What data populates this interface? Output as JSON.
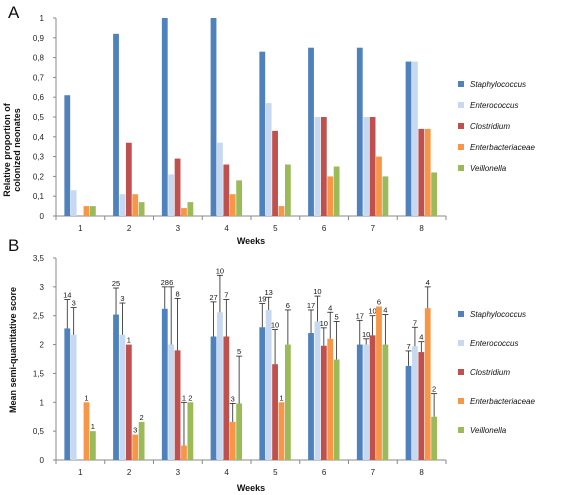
{
  "colors": [
    "#4f81bd",
    "#c6d9f1",
    "#c0504d",
    "#f79646",
    "#9bbb59"
  ],
  "chart_data": [
    {
      "type": "bar",
      "panel_label": "A",
      "title": "",
      "xlabel": "Weeks",
      "ylabel_lines": [
        "Relative proportion of",
        "colonized neonates"
      ],
      "categories": [
        "1",
        "2",
        "3",
        "4",
        "5",
        "6",
        "7",
        "8"
      ],
      "ylim": [
        0,
        1
      ],
      "yticks": [
        "0",
        "0,1",
        "0,2",
        "0,3",
        "0,4",
        "0,5",
        "0,6",
        "0,7",
        "0,8",
        "0,9",
        "1"
      ],
      "grid": false,
      "legend_position": "right",
      "series": [
        {
          "name": "Staphylococcus",
          "values": [
            0.61,
            0.92,
            1.0,
            1.0,
            0.83,
            0.85,
            0.85,
            0.78
          ]
        },
        {
          "name": "Enterococcus",
          "values": [
            0.13,
            0.11,
            0.21,
            0.37,
            0.57,
            0.5,
            0.5,
            0.78
          ]
        },
        {
          "name": "Clostridium",
          "values": [
            0.0,
            0.37,
            0.29,
            0.26,
            0.43,
            0.5,
            0.5,
            0.44
          ]
        },
        {
          "name": "Enterbacteriaceae",
          "values": [
            0.05,
            0.11,
            0.04,
            0.11,
            0.05,
            0.2,
            0.3,
            0.44
          ]
        },
        {
          "name": "Veillonella",
          "values": [
            0.05,
            0.07,
            0.07,
            0.18,
            0.26,
            0.25,
            0.2,
            0.22
          ]
        }
      ]
    },
    {
      "type": "bar",
      "panel_label": "B",
      "title": "",
      "xlabel": "Weeks",
      "ylabel": "Mean semi-quantitative score",
      "categories": [
        "1",
        "2",
        "3",
        "4",
        "5",
        "6",
        "7",
        "8"
      ],
      "ylim": [
        0,
        3.5
      ],
      "yticks": [
        "0",
        "0,5",
        "1",
        "1,5",
        "2",
        "2,5",
        "3",
        "3,5"
      ],
      "grid": false,
      "legend_position": "right",
      "error_bars": "upper",
      "series": [
        {
          "name": "Staphylococcus",
          "values": [
            2.28,
            2.52,
            2.62,
            2.14,
            2.3,
            2.2,
            2.0,
            1.63
          ],
          "errors": [
            0.5,
            0.46,
            0.38,
            0.6,
            0.41,
            0.4,
            0.42,
            0.26
          ],
          "n_labels": [
            "14",
            "25",
            "28",
            "27",
            "19",
            "17",
            "17",
            "7"
          ]
        },
        {
          "name": "Enterococcus",
          "values": [
            2.17,
            2.17,
            2.0,
            2.56,
            2.6,
            2.4,
            2.0,
            1.97
          ],
          "errors": [
            0.47,
            0.55,
            1.0,
            0.64,
            0.22,
            0.44,
            0.1,
            0.33
          ],
          "n_labels": [
            "3",
            "3",
            "6",
            "10",
            "13",
            "10",
            "10",
            "7"
          ]
        },
        {
          "name": "Clostridium",
          "values": [
            0.0,
            2.0,
            1.9,
            2.14,
            1.66,
            1.98,
            2.16,
            1.87
          ],
          "errors": [
            0.0,
            0.0,
            0.9,
            0.64,
            0.6,
            0.31,
            0.34,
            0.18
          ],
          "n_labels": [
            "",
            "1",
            "8",
            "7",
            "10",
            "10",
            "10",
            "4"
          ]
        },
        {
          "name": "Enterbacteriaceae",
          "values": [
            1.0,
            0.44,
            0.25,
            0.66,
            1.0,
            2.1,
            2.66,
            2.63
          ],
          "errors": [
            0.0,
            0.0,
            0.75,
            0.32,
            0.0,
            0.46,
            0.0,
            0.37
          ],
          "n_labels": [
            "1",
            "3",
            "1",
            "3",
            "1",
            "4",
            "6",
            "4"
          ]
        },
        {
          "name": "Veillonella",
          "values": [
            0.5,
            0.66,
            1.0,
            0.98,
            2.0,
            1.74,
            2.0,
            0.75
          ],
          "errors": [
            0.0,
            0.0,
            0.0,
            0.82,
            0.6,
            0.66,
            0.52,
            0.4
          ],
          "n_labels": [
            "1",
            "2",
            "2",
            "5",
            "6",
            "5",
            "4",
            "2"
          ]
        }
      ]
    }
  ]
}
